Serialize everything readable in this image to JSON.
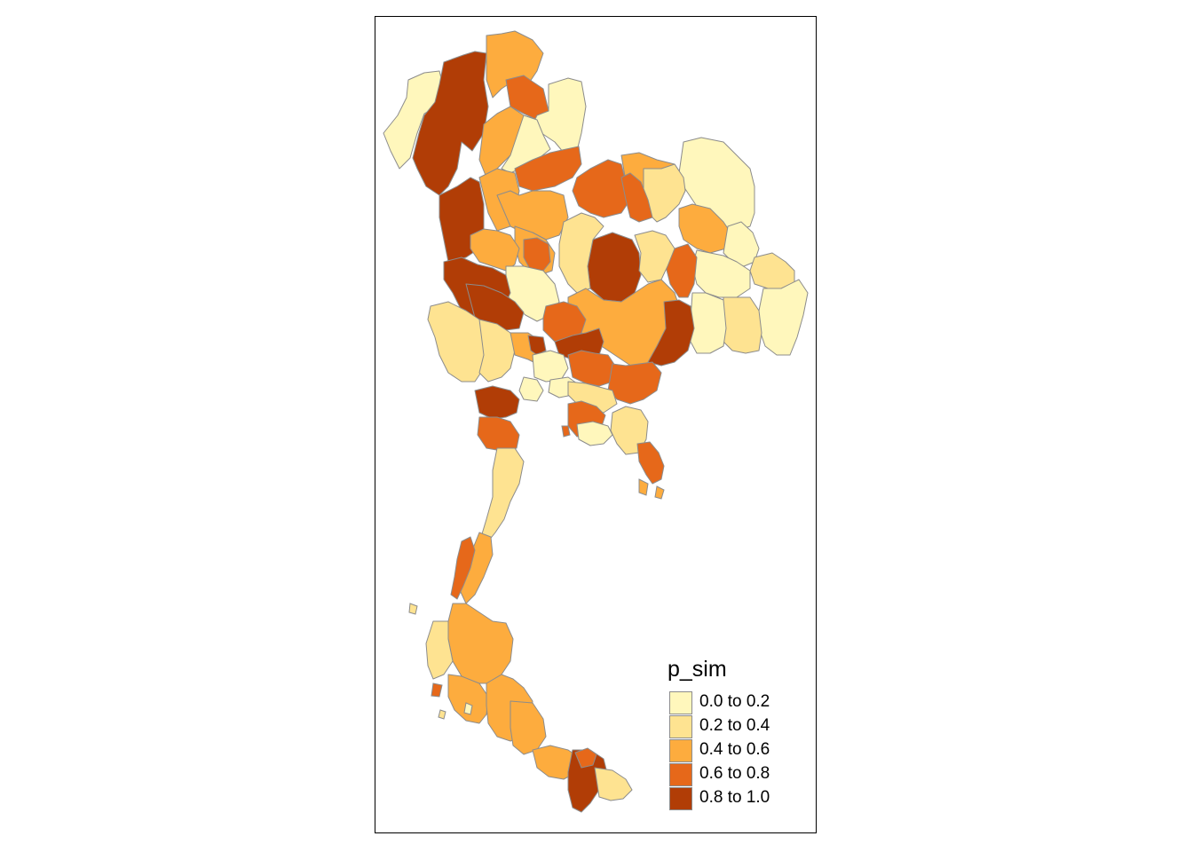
{
  "map": {
    "legend": {
      "title": "p_sim",
      "items": [
        {
          "label": "0.0 to 0.2",
          "color": "#fff7bc"
        },
        {
          "label": "0.2 to 0.4",
          "color": "#fee391"
        },
        {
          "label": "0.4 to 0.6",
          "color": "#fdac3e"
        },
        {
          "label": "0.6 to 0.8",
          "color": "#e6681a"
        },
        {
          "label": "0.8 to 1.0",
          "color": "#b13d06"
        }
      ]
    },
    "border_color": "#8c8c8c",
    "frame_color": "#000000"
  }
}
